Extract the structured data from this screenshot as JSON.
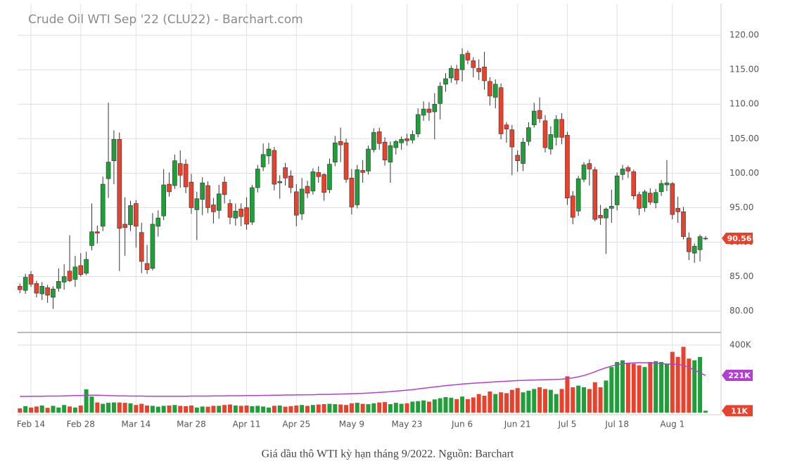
{
  "chart_data": {
    "type": "candlestick",
    "title": "Crude Oil WTI Sep '22 (CLU22) - Barchart.com",
    "caption": "Giá dầu thô WTI kỳ hạn tháng 9/2022. Nguồn: Barchart",
    "categories": [
      null,
      null,
      "Feb 14",
      null,
      null,
      null,
      null,
      null,
      null,
      null,
      null,
      "Feb 28",
      null,
      null,
      null,
      null,
      null,
      null,
      null,
      null,
      null,
      "Mar 14",
      null,
      null,
      null,
      null,
      null,
      null,
      null,
      null,
      null,
      "Mar 28",
      null,
      null,
      null,
      null,
      null,
      null,
      null,
      null,
      null,
      "Apr 11",
      null,
      null,
      null,
      null,
      null,
      null,
      null,
      null,
      "Apr 25",
      null,
      null,
      null,
      null,
      null,
      null,
      null,
      null,
      null,
      "May 9",
      null,
      null,
      null,
      null,
      null,
      null,
      null,
      null,
      null,
      "May 23",
      null,
      null,
      null,
      null,
      null,
      null,
      null,
      null,
      null,
      "Jun 6",
      null,
      null,
      null,
      null,
      null,
      null,
      null,
      null,
      null,
      "Jun 21",
      null,
      null,
      null,
      null,
      null,
      null,
      null,
      null,
      "Jul 5",
      null,
      null,
      null,
      null,
      null,
      null,
      null,
      null,
      "Jul 18",
      null,
      null,
      null,
      null,
      null,
      null,
      null,
      null,
      null,
      "Aug 1",
      null,
      null,
      null,
      null,
      null,
      null
    ],
    "ohlc": [
      [
        83.6,
        84.0,
        82.6,
        83.1
      ],
      [
        83.0,
        85.4,
        82.5,
        84.9
      ],
      [
        85.3,
        85.8,
        83.5,
        83.9
      ],
      [
        84.0,
        84.4,
        82.0,
        82.6
      ],
      [
        82.5,
        84.2,
        81.6,
        83.6
      ],
      [
        83.4,
        83.8,
        81.2,
        82.3
      ],
      [
        82.0,
        83.6,
        80.3,
        83.2
      ],
      [
        83.3,
        86.2,
        82.8,
        84.3
      ],
      [
        84.2,
        86.8,
        83.1,
        85.0
      ],
      [
        85.8,
        91.0,
        84.2,
        84.4
      ],
      [
        84.6,
        88.0,
        83.5,
        86.4
      ],
      [
        86.6,
        88.4,
        85.0,
        85.3
      ],
      [
        85.5,
        88.6,
        85.2,
        87.5
      ],
      [
        89.5,
        95.6,
        88.8,
        91.5
      ],
      [
        91.5,
        92.4,
        89.8,
        91.3
      ],
      [
        92.3,
        99.5,
        91.6,
        98.4
      ],
      [
        99.2,
        110.2,
        96.4,
        101.6
      ],
      [
        101.8,
        106.2,
        98.4,
        104.9
      ],
      [
        104.9,
        105.9,
        85.8,
        92.0
      ],
      [
        92.6,
        96.5,
        88.0,
        92.1
      ],
      [
        92.5,
        96.0,
        91.6,
        95.3
      ],
      [
        95.6,
        96.1,
        89.2,
        92.3
      ],
      [
        91.4,
        92.8,
        85.5,
        87.2
      ],
      [
        86.9,
        89.6,
        85.4,
        86.0
      ],
      [
        86.2,
        94.2,
        85.9,
        92.6
      ],
      [
        92.3,
        94.6,
        90.8,
        93.5
      ],
      [
        93.8,
        100.6,
        93.2,
        98.3
      ],
      [
        98.4,
        100.1,
        96.6,
        97.3
      ],
      [
        98.2,
        102.7,
        97.7,
        101.8
      ],
      [
        101.4,
        103.3,
        97.9,
        99.7
      ],
      [
        101.3,
        102.0,
        97.1,
        98.0
      ],
      [
        98.7,
        99.9,
        94.1,
        95.0
      ],
      [
        94.7,
        97.3,
        90.3,
        96.3
      ],
      [
        96.2,
        99.4,
        93.9,
        98.6
      ],
      [
        98.2,
        98.8,
        94.2,
        95.0
      ],
      [
        95.4,
        96.4,
        92.7,
        94.4
      ],
      [
        94.6,
        98.3,
        93.4,
        97.0
      ],
      [
        98.7,
        99.5,
        95.6,
        96.9
      ],
      [
        95.6,
        96.2,
        92.6,
        93.6
      ],
      [
        93.5,
        95.6,
        92.4,
        94.5
      ],
      [
        94.8,
        95.6,
        92.3,
        93.7
      ],
      [
        95.0,
        96.5,
        91.8,
        92.6
      ],
      [
        92.9,
        98.3,
        92.5,
        97.9
      ],
      [
        97.9,
        101.2,
        97.2,
        100.6
      ],
      [
        100.9,
        104.3,
        100.3,
        102.7
      ],
      [
        102.5,
        104.4,
        101.3,
        103.5
      ],
      [
        103.3,
        103.8,
        97.5,
        98.4
      ],
      [
        98.6,
        99.7,
        96.3,
        98.8
      ],
      [
        100.8,
        101.5,
        98.2,
        99.3
      ],
      [
        99.6,
        100.4,
        97.1,
        97.9
      ],
      [
        97.3,
        98.4,
        92.3,
        93.9
      ],
      [
        94.1,
        99.3,
        93.2,
        97.7
      ],
      [
        98.1,
        98.9,
        96.4,
        97.1
      ],
      [
        97.4,
        100.7,
        96.9,
        100.2
      ],
      [
        100.1,
        101.0,
        98.6,
        99.5
      ],
      [
        99.8,
        100.0,
        96.0,
        97.2
      ],
      [
        97.6,
        102.1,
        97.1,
        101.3
      ],
      [
        101.6,
        105.4,
        101.0,
        104.4
      ],
      [
        104.6,
        106.6,
        101.6,
        104.1
      ],
      [
        104.4,
        105.0,
        98.6,
        99.1
      ],
      [
        99.3,
        100.6,
        94.0,
        95.1
      ],
      [
        95.4,
        101.2,
        94.9,
        100.5
      ],
      [
        100.4,
        101.9,
        98.6,
        100.1
      ],
      [
        100.3,
        104.0,
        99.8,
        103.5
      ],
      [
        103.4,
        106.5,
        103.0,
        105.9
      ],
      [
        106.0,
        106.6,
        103.4,
        104.3
      ],
      [
        104.5,
        105.2,
        101.1,
        101.9
      ],
      [
        101.6,
        104.6,
        98.6,
        104.0
      ],
      [
        103.7,
        104.8,
        102.7,
        104.6
      ],
      [
        104.4,
        105.3,
        103.4,
        104.9
      ],
      [
        105.0,
        105.7,
        104.0,
        104.7
      ],
      [
        104.8,
        106.2,
        104.3,
        105.6
      ],
      [
        105.7,
        109.4,
        105.2,
        108.5
      ],
      [
        108.4,
        110.4,
        107.6,
        109.3
      ],
      [
        109.3,
        110.3,
        107.6,
        108.8
      ],
      [
        108.9,
        111.6,
        104.9,
        110.0
      ],
      [
        110.1,
        113.2,
        107.8,
        112.6
      ],
      [
        112.9,
        114.5,
        111.8,
        113.7
      ],
      [
        113.8,
        115.6,
        113.1,
        115.2
      ],
      [
        115.1,
        115.7,
        112.9,
        113.5
      ],
      [
        115.0,
        118.1,
        113.3,
        117.2
      ],
      [
        117.4,
        117.8,
        115.8,
        116.4
      ],
      [
        116.3,
        116.8,
        113.9,
        115.3
      ],
      [
        115.2,
        116.5,
        113.5,
        114.7
      ],
      [
        115.4,
        117.6,
        112.1,
        113.4
      ],
      [
        113.3,
        113.9,
        109.8,
        111.2
      ],
      [
        111.0,
        113.6,
        109.4,
        112.9
      ],
      [
        112.4,
        113.0,
        104.9,
        105.7
      ],
      [
        107.0,
        107.4,
        104.4,
        106.4
      ],
      [
        106.3,
        107.0,
        99.7,
        103.8
      ],
      [
        102.6,
        103.3,
        100.2,
        101.8
      ],
      [
        101.4,
        105.1,
        100.3,
        104.5
      ],
      [
        104.6,
        107.4,
        104.0,
        106.6
      ],
      [
        107.0,
        110.2,
        106.6,
        109.0
      ],
      [
        109.1,
        111.0,
        107.3,
        107.9
      ],
      [
        107.6,
        108.4,
        103.0,
        103.7
      ],
      [
        103.5,
        106.8,
        102.7,
        105.6
      ],
      [
        105.2,
        108.4,
        104.0,
        107.8
      ],
      [
        107.8,
        108.7,
        104.2,
        105.2
      ],
      [
        105.5,
        106.0,
        95.4,
        96.4
      ],
      [
        96.7,
        97.4,
        92.6,
        93.6
      ],
      [
        94.5,
        99.6,
        93.8,
        99.2
      ],
      [
        99.1,
        101.6,
        98.7,
        101.2
      ],
      [
        101.4,
        102.0,
        98.2,
        100.6
      ],
      [
        100.5,
        100.9,
        93.0,
        93.3
      ],
      [
        93.9,
        95.4,
        92.5,
        93.5
      ],
      [
        93.5,
        95.0,
        88.3,
        94.8
      ],
      [
        94.9,
        97.6,
        92.8,
        95.2
      ],
      [
        95.4,
        100.1,
        94.6,
        99.6
      ],
      [
        99.8,
        101.2,
        99.0,
        100.6
      ],
      [
        100.8,
        101.1,
        99.3,
        100.3
      ],
      [
        100.2,
        100.5,
        96.2,
        96.7
      ],
      [
        96.9,
        97.3,
        93.9,
        94.9
      ],
      [
        95.0,
        97.6,
        94.4,
        97.3
      ],
      [
        97.1,
        97.8,
        95.4,
        95.8
      ],
      [
        95.7,
        97.7,
        94.9,
        97.2
      ],
      [
        97.3,
        99.0,
        96.7,
        98.5
      ],
      [
        98.3,
        101.9,
        97.4,
        98.6
      ],
      [
        98.5,
        98.7,
        93.3,
        94.0
      ],
      [
        94.9,
        96.6,
        92.8,
        94.4
      ],
      [
        94.4,
        95.1,
        90.4,
        90.8
      ],
      [
        90.6,
        91.4,
        87.4,
        88.6
      ],
      [
        88.4,
        89.8,
        87.0,
        89.4
      ],
      [
        88.9,
        91.1,
        87.2,
        90.8
      ],
      [
        90.5,
        90.9,
        90.3,
        90.56
      ]
    ],
    "up_color": "#1f9e3a",
    "down_color": "#e8412c",
    "ylim": [
      76.9,
      124.6
    ],
    "yticks": [
      {
        "value": 80,
        "label": "80.00"
      },
      {
        "value": 85,
        "label": "85.00"
      },
      {
        "value": 90,
        "label": "90.00"
      },
      {
        "value": 95,
        "label": "95.00"
      },
      {
        "value": 100,
        "label": "100.00"
      },
      {
        "value": 105,
        "label": "105.00"
      },
      {
        "value": 110,
        "label": "110.00"
      },
      {
        "value": 115,
        "label": "115.00"
      },
      {
        "value": 120,
        "label": "120.00"
      }
    ],
    "grid": true,
    "volume": [
      25,
      38,
      30,
      36,
      42,
      28,
      40,
      30,
      45,
      36,
      30,
      42,
      138,
      95,
      60,
      52,
      58,
      60,
      60,
      58,
      55,
      45,
      52,
      42,
      40,
      35,
      40,
      42,
      45,
      40,
      38,
      42,
      30,
      36,
      35,
      40,
      40,
      45,
      48,
      42,
      40,
      42,
      38,
      40,
      36,
      30,
      40,
      42,
      35,
      38,
      42,
      45,
      40,
      45,
      48,
      50,
      52,
      50,
      48,
      45,
      55,
      58,
      52,
      50,
      55,
      60,
      62,
      50,
      58,
      52,
      55,
      65,
      68,
      72,
      65,
      78,
      85,
      92,
      88,
      80,
      95,
      80,
      90,
      110,
      100,
      125,
      110,
      120,
      115,
      135,
      145,
      120,
      130,
      140,
      150,
      140,
      135,
      110,
      140,
      215,
      150,
      160,
      150,
      140,
      180,
      150,
      190,
      270,
      300,
      310,
      295,
      290,
      280,
      270,
      300,
      305,
      300,
      290,
      360,
      330,
      390,
      320,
      310,
      330,
      11
    ],
    "volume_ma": [
      96,
      96,
      97,
      97,
      97,
      98,
      98,
      98,
      99,
      100,
      101,
      101,
      103,
      103,
      103,
      102,
      101,
      100,
      99,
      99,
      98,
      98,
      98,
      97,
      97,
      97,
      97,
      97,
      97,
      97,
      97,
      98,
      98,
      98,
      98,
      99,
      99,
      99,
      100,
      100,
      100,
      101,
      101,
      101,
      102,
      102,
      103,
      103,
      104,
      104,
      105,
      105,
      106,
      106,
      107,
      108,
      108,
      109,
      110,
      111,
      112,
      113,
      114,
      116,
      118,
      120,
      122,
      124,
      127,
      130,
      133,
      136,
      140,
      144,
      148,
      152,
      156,
      160,
      163,
      166,
      169,
      172,
      174,
      176,
      178,
      180,
      182,
      184,
      186,
      188,
      190,
      191,
      192,
      193,
      194,
      195,
      196,
      197,
      198,
      202,
      206,
      212,
      220,
      230,
      242,
      255,
      266,
      276,
      284,
      290,
      293,
      295,
      296,
      296,
      295,
      293,
      290,
      288,
      287,
      286,
      280,
      268,
      252,
      235,
      221
    ],
    "volume_ma_color": "#b23fd0",
    "y2lim": [
      0,
      466.7
    ],
    "y2ticks": [
      {
        "value": 400,
        "label": "400K"
      }
    ],
    "volume_badges": [
      {
        "value": 221,
        "label": "221K",
        "color": "#b23fd0"
      },
      {
        "value": 11,
        "label": "11K",
        "color": "#e8412c"
      }
    ]
  }
}
